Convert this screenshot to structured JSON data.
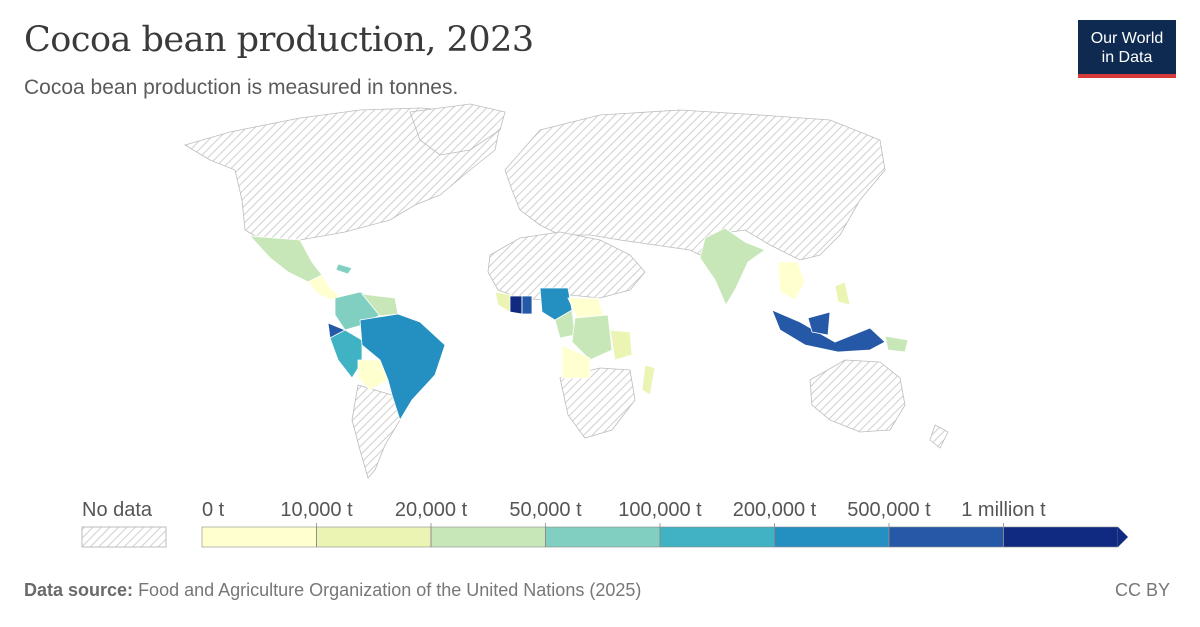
{
  "header": {
    "title": "Cocoa bean production, 2023",
    "subtitle": "Cocoa bean production is measured in tonnes.",
    "logo_line1": "Our World",
    "logo_line2": "in Data"
  },
  "legend": {
    "no_data_label": "No data",
    "bins": [
      {
        "label": "0 t",
        "color": "#ffffd0"
      },
      {
        "label": "10,000 t",
        "color": "#ecf4b4"
      },
      {
        "label": "20,000 t",
        "color": "#c8e7b8"
      },
      {
        "label": "50,000 t",
        "color": "#80cfc0"
      },
      {
        "label": "100,000 t",
        "color": "#3fb2c4"
      },
      {
        "label": "200,000 t",
        "color": "#2490c2"
      },
      {
        "label": "500,000 t",
        "color": "#2559a7"
      },
      {
        "label": "1 million t",
        "color": "#0f2a80"
      }
    ]
  },
  "footer": {
    "source_label": "Data source:",
    "source_text": "Food and Agriculture Organization of the United Nations (2025)",
    "license": "CC BY"
  }
}
